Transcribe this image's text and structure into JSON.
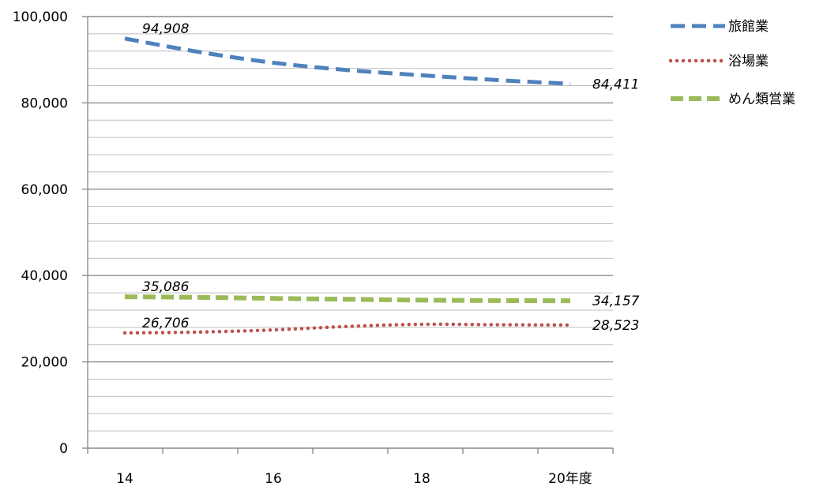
{
  "chart_data": {
    "type": "line",
    "x": [
      14,
      15,
      16,
      17,
      18,
      19,
      20
    ],
    "x_ticks": [
      {
        "value": 14,
        "label": "14"
      },
      {
        "value": 16,
        "label": "16"
      },
      {
        "value": 18,
        "label": "18"
      },
      {
        "value": 20,
        "label": "20年度"
      }
    ],
    "ylim": [
      0,
      100000
    ],
    "y_ticks": [
      {
        "value": 0,
        "label": "0"
      },
      {
        "value": 20000,
        "label": "20,000"
      },
      {
        "value": 40000,
        "label": "40,000"
      },
      {
        "value": 60000,
        "label": "60,000"
      },
      {
        "value": 80000,
        "label": "80,000"
      },
      {
        "value": 100000,
        "label": "100,000"
      }
    ],
    "minor_grid_step": 4000,
    "grid": true,
    "legend_position": "top-right",
    "series": [
      {
        "name": "旅館業",
        "color": "#4F81BD",
        "dash": "dashed",
        "values": [
          94908,
          91800,
          89300,
          87600,
          86400,
          85300,
          84411
        ],
        "labels": [
          {
            "index": 0,
            "text": "94,908",
            "side": "above"
          },
          {
            "index": 6,
            "text": "84,411",
            "side": "right"
          }
        ]
      },
      {
        "name": "浴場業",
        "color": "#C0504D",
        "dash": "dotted",
        "values": [
          26706,
          26900,
          27400,
          28200,
          28700,
          28600,
          28523
        ],
        "labels": [
          {
            "index": 0,
            "text": "26,706",
            "side": "above"
          },
          {
            "index": 6,
            "text": "28,523",
            "side": "right"
          }
        ]
      },
      {
        "name": "めん類営業",
        "color": "#9BBB59",
        "dash": "dashed-wide",
        "values": [
          35086,
          34950,
          34700,
          34500,
          34300,
          34200,
          34157
        ],
        "labels": [
          {
            "index": 0,
            "text": "35,086",
            "side": "above"
          },
          {
            "index": 6,
            "text": "34,157",
            "side": "right"
          }
        ]
      }
    ]
  }
}
